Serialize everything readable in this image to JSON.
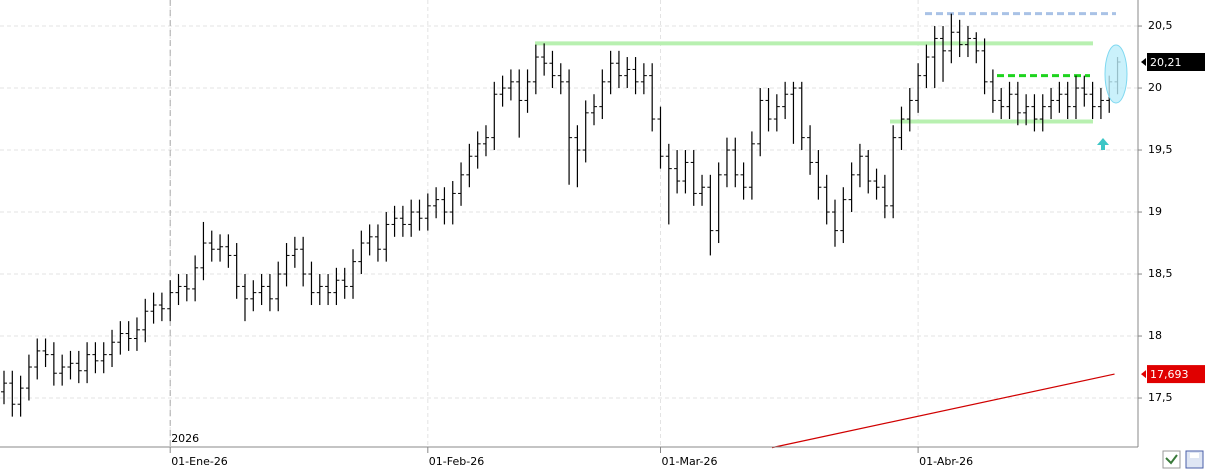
{
  "chart_data": {
    "type": "ohlc",
    "categories": [
      null,
      null,
      null,
      null,
      null,
      null,
      null,
      null,
      null,
      null,
      null,
      null,
      null,
      null,
      null,
      null,
      null,
      null,
      null,
      null,
      "01-Ene-26",
      null,
      null,
      null,
      null,
      null,
      null,
      null,
      null,
      null,
      null,
      null,
      null,
      null,
      null,
      null,
      null,
      null,
      null,
      null,
      null,
      null,
      null,
      null,
      null,
      null,
      null,
      null,
      null,
      null,
      null,
      "01-Feb-26",
      null,
      null,
      null,
      null,
      null,
      null,
      null,
      null,
      null,
      null,
      null,
      null,
      null,
      null,
      null,
      null,
      null,
      null,
      null,
      null,
      null,
      null,
      null,
      null,
      null,
      null,
      null,
      "01-Mar-26",
      null,
      null,
      null,
      null,
      null,
      null,
      null,
      null,
      null,
      null,
      null,
      null,
      null,
      null,
      null,
      null,
      null,
      null,
      null,
      null,
      null,
      null,
      null,
      null,
      null,
      null,
      null,
      null,
      null,
      null,
      "01-Abr-26",
      null,
      null,
      null,
      null,
      null,
      null,
      null,
      null,
      null,
      null,
      null,
      null,
      null,
      null,
      null,
      null,
      null,
      null,
      null,
      null,
      null,
      null,
      null,
      null
    ],
    "year_label": "2026",
    "color": "#000000",
    "ohlc": {
      "open": [
        17.55,
        17.62,
        17.45,
        17.58,
        17.75,
        17.88,
        17.85,
        17.7,
        17.75,
        17.78,
        17.72,
        17.85,
        17.8,
        17.85,
        17.95,
        18.02,
        17.98,
        18.05,
        18.2,
        18.25,
        18.22,
        18.35,
        18.4,
        18.38,
        18.55,
        18.75,
        18.7,
        18.72,
        18.65,
        18.4,
        18.3,
        18.35,
        18.4,
        18.3,
        18.5,
        18.65,
        18.7,
        18.5,
        18.35,
        18.4,
        18.35,
        18.45,
        18.4,
        18.6,
        18.75,
        18.8,
        18.7,
        18.9,
        18.95,
        18.9,
        19.0,
        18.95,
        19.05,
        19.1,
        19.0,
        19.15,
        19.3,
        19.45,
        19.55,
        19.6,
        19.95,
        20.0,
        20.05,
        19.9,
        20.05,
        20.25,
        20.2,
        20.1,
        20.05,
        19.6,
        19.5,
        19.8,
        19.85,
        20.05,
        20.2,
        20.1,
        20.15,
        20.05,
        20.1,
        19.75,
        19.45,
        19.35,
        19.25,
        19.4,
        19.15,
        19.2,
        18.85,
        19.3,
        19.5,
        19.3,
        19.2,
        19.55,
        19.9,
        19.75,
        19.85,
        19.95,
        20.0,
        19.6,
        19.4,
        19.2,
        19.0,
        18.85,
        19.1,
        19.3,
        19.45,
        19.25,
        19.2,
        19.05,
        19.6,
        19.75,
        19.9,
        20.1,
        20.25,
        20.4,
        20.3,
        20.45,
        20.35,
        20.4,
        20.3,
        20.05,
        19.9,
        19.85,
        19.95,
        19.8,
        19.85,
        19.75,
        19.85,
        19.9,
        19.95,
        19.85,
        20.0,
        19.95,
        19.85,
        19.9,
        20.05
      ],
      "high": [
        17.72,
        17.72,
        17.68,
        17.85,
        17.98,
        17.98,
        17.95,
        17.85,
        17.88,
        17.88,
        17.95,
        17.95,
        17.95,
        18.05,
        18.12,
        18.12,
        18.15,
        18.3,
        18.35,
        18.35,
        18.45,
        18.5,
        18.5,
        18.65,
        18.92,
        18.85,
        18.82,
        18.82,
        18.75,
        18.5,
        18.45,
        18.5,
        18.5,
        18.6,
        18.75,
        18.8,
        18.8,
        18.6,
        18.5,
        18.5,
        18.55,
        18.55,
        18.7,
        18.85,
        18.9,
        18.9,
        19.0,
        19.05,
        19.05,
        19.1,
        19.1,
        19.15,
        19.2,
        19.2,
        19.25,
        19.4,
        19.55,
        19.65,
        19.7,
        20.05,
        20.1,
        20.15,
        20.15,
        20.15,
        20.35,
        20.36,
        20.3,
        20.2,
        20.15,
        19.7,
        19.9,
        19.95,
        20.15,
        20.3,
        20.3,
        20.25,
        20.25,
        20.2,
        20.2,
        19.85,
        19.55,
        19.5,
        19.5,
        19.5,
        19.3,
        19.3,
        19.4,
        19.6,
        19.6,
        19.4,
        19.65,
        20.0,
        20.0,
        19.95,
        20.05,
        20.05,
        20.05,
        19.7,
        19.5,
        19.3,
        19.1,
        19.2,
        19.4,
        19.55,
        19.5,
        19.35,
        19.3,
        19.7,
        19.85,
        20.0,
        20.2,
        20.35,
        20.5,
        20.5,
        20.6,
        20.55,
        20.5,
        20.45,
        20.4,
        20.15,
        20.0,
        20.05,
        20.05,
        19.95,
        19.95,
        19.95,
        20.0,
        20.05,
        20.05,
        20.1,
        20.1,
        20.05,
        20.0,
        20.1,
        20.25
      ],
      "low": [
        17.45,
        17.35,
        17.35,
        17.48,
        17.65,
        17.75,
        17.6,
        17.6,
        17.65,
        17.62,
        17.62,
        17.7,
        17.7,
        17.75,
        17.85,
        17.88,
        17.88,
        17.95,
        18.1,
        18.12,
        18.12,
        18.25,
        18.28,
        18.28,
        18.45,
        18.6,
        18.6,
        18.55,
        18.3,
        18.12,
        18.2,
        18.25,
        18.2,
        18.2,
        18.4,
        18.55,
        18.4,
        18.25,
        18.25,
        18.25,
        18.25,
        18.3,
        18.3,
        18.5,
        18.65,
        18.6,
        18.6,
        18.8,
        18.8,
        18.8,
        18.85,
        18.85,
        18.95,
        18.9,
        18.9,
        19.05,
        19.2,
        19.35,
        19.45,
        19.5,
        19.85,
        19.9,
        19.6,
        19.8,
        19.95,
        20.1,
        20.0,
        19.95,
        19.22,
        19.2,
        19.4,
        19.7,
        19.75,
        19.95,
        20.0,
        20.0,
        19.95,
        19.95,
        19.65,
        19.35,
        18.9,
        19.15,
        19.15,
        19.05,
        19.05,
        18.65,
        18.75,
        19.2,
        19.2,
        19.1,
        19.1,
        19.45,
        19.65,
        19.65,
        19.75,
        19.55,
        19.5,
        19.3,
        19.1,
        18.9,
        18.72,
        18.75,
        19.0,
        19.2,
        19.15,
        19.1,
        18.95,
        18.95,
        19.5,
        19.65,
        19.8,
        20.0,
        20.0,
        20.05,
        20.2,
        20.25,
        20.25,
        20.2,
        19.95,
        19.8,
        19.75,
        19.75,
        19.7,
        19.7,
        19.65,
        19.65,
        19.75,
        19.8,
        19.75,
        19.75,
        19.85,
        19.75,
        19.75,
        19.8,
        19.95
      ],
      "close": [
        17.62,
        17.45,
        17.58,
        17.75,
        17.88,
        17.85,
        17.7,
        17.75,
        17.78,
        17.72,
        17.85,
        17.8,
        17.85,
        17.95,
        18.02,
        17.98,
        18.05,
        18.2,
        18.25,
        18.22,
        18.35,
        18.4,
        18.38,
        18.55,
        18.75,
        18.7,
        18.72,
        18.65,
        18.4,
        18.3,
        18.35,
        18.4,
        18.3,
        18.5,
        18.65,
        18.7,
        18.5,
        18.35,
        18.4,
        18.35,
        18.45,
        18.4,
        18.6,
        18.75,
        18.8,
        18.7,
        18.9,
        18.95,
        18.9,
        19.0,
        18.95,
        19.05,
        19.1,
        19.0,
        19.15,
        19.3,
        19.45,
        19.55,
        19.6,
        19.95,
        20.0,
        20.05,
        19.9,
        20.05,
        20.25,
        20.2,
        20.1,
        20.05,
        19.6,
        19.5,
        19.8,
        19.85,
        20.05,
        20.2,
        20.1,
        20.15,
        20.05,
        20.1,
        19.75,
        19.45,
        19.35,
        19.25,
        19.4,
        19.15,
        19.2,
        18.85,
        19.3,
        19.5,
        19.3,
        19.2,
        19.55,
        19.9,
        19.75,
        19.85,
        19.95,
        20.0,
        19.6,
        19.4,
        19.2,
        19.0,
        18.85,
        19.1,
        19.3,
        19.45,
        19.25,
        19.2,
        19.05,
        19.6,
        19.75,
        19.9,
        20.1,
        20.25,
        20.4,
        20.3,
        20.45,
        20.35,
        20.4,
        20.3,
        20.05,
        19.9,
        19.85,
        19.95,
        19.8,
        19.85,
        19.75,
        19.85,
        19.9,
        19.95,
        19.85,
        20.0,
        19.95,
        19.85,
        19.9,
        20.05,
        20.21
      ]
    },
    "last_price": {
      "value": 20.21,
      "label": "20,21"
    },
    "moving_average": {
      "color": "#d00000",
      "values": [
        17.1,
        17.693
      ],
      "last_label": "17,693"
    },
    "levels": [
      {
        "value": 20.36,
        "color": "#b8f0b0",
        "style": "solid"
      },
      {
        "value": 19.73,
        "color": "#b8f0b0",
        "style": "solid"
      },
      {
        "value": 20.6,
        "color": "#a9c2e6",
        "style": "dashed"
      },
      {
        "value": 20.1,
        "color": "#1ed41e",
        "style": "dashed"
      }
    ],
    "ylim": [
      17.105,
      20.71
    ],
    "yticks": [
      {
        "value": 17.5,
        "label": "17,5"
      },
      18,
      {
        "value": 18.5,
        "label": "18,5"
      },
      19,
      {
        "value": 19.5,
        "label": "19,5"
      },
      20,
      {
        "value": 20.5,
        "label": "20,5"
      }
    ],
    "grid": true
  }
}
